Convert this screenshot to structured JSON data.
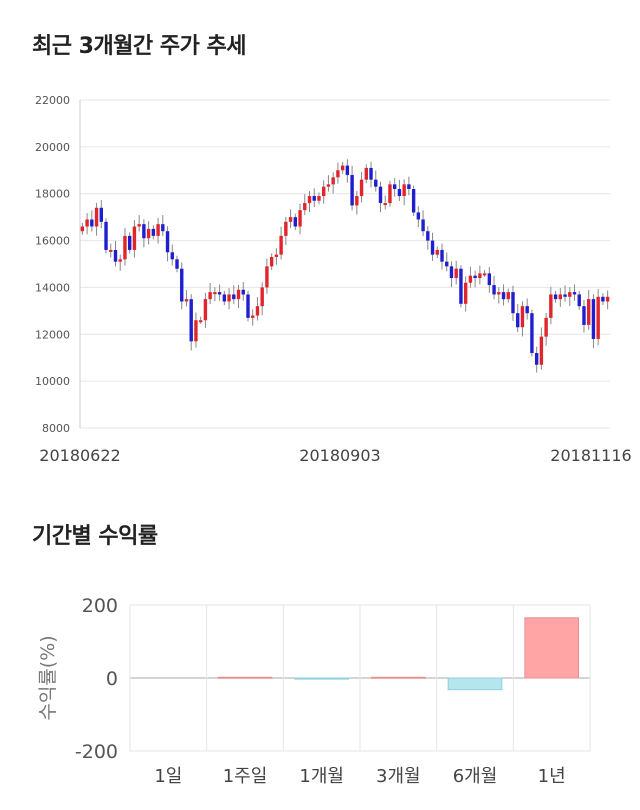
{
  "sections": {
    "price_title": "최근 3개월간 주가 추세",
    "returns_title": "기간별 수익률"
  },
  "colors": {
    "up": "#e0262c",
    "down": "#1f1fd0",
    "wick": "#888888",
    "grid": "#e6e6e6",
    "positive_bar": "#ffa5a6",
    "negative_bar": "#b4e6ee"
  },
  "chart_data": [
    {
      "type": "candlestick",
      "title": "최근 3개월간 주가 추세",
      "ylim": [
        8000,
        22000
      ],
      "yticks": [
        "22000",
        "20000",
        "18000",
        "16000",
        "14000",
        "12000",
        "10000",
        "8000"
      ],
      "xtick_labels": [
        "20180622",
        "20180903",
        "20181116"
      ],
      "grid": true,
      "closes": [
        16600,
        16900,
        16600,
        17400,
        16800,
        15600,
        15600,
        15100,
        15200,
        16200,
        15600,
        16600,
        16700,
        16100,
        16500,
        16200,
        16700,
        16400,
        15500,
        15200,
        14800,
        13400,
        13500,
        11700,
        12600,
        12600,
        13500,
        13800,
        13800,
        13700,
        13400,
        13700,
        13500,
        13900,
        13700,
        12700,
        12800,
        13200,
        14000,
        14900,
        15300,
        15400,
        16200,
        16800,
        17000,
        16600,
        17300,
        17600,
        17900,
        17700,
        17900,
        18300,
        18400,
        18700,
        19000,
        19200,
        18800,
        17500,
        17900,
        18600,
        19100,
        18600,
        18300,
        17600,
        17600,
        18400,
        18200,
        17900,
        18400,
        18200,
        17200,
        16900,
        16400,
        16000,
        15400,
        15600,
        15100,
        14900,
        14400,
        14800,
        13300,
        14200,
        14500,
        14400,
        14600,
        14600,
        14100,
        13700,
        13800,
        13500,
        13800,
        12900,
        12300,
        13200,
        12900,
        11200,
        10700,
        11900,
        12700,
        13700,
        13500,
        13700,
        13600,
        13800,
        13700,
        13200,
        12400,
        13500,
        11800,
        13600,
        13400,
        13600
      ]
    },
    {
      "type": "bar",
      "title": "기간별 수익률",
      "categories": [
        "1일",
        "1주일",
        "1개월",
        "3개월",
        "6개월",
        "1년"
      ],
      "values": [
        0,
        2,
        -3,
        2,
        -32,
        165
      ],
      "ylabel": "수익률(%)",
      "ylim": [
        -200,
        200
      ],
      "yticks": [
        "200",
        "0",
        "-200"
      ],
      "grid": true
    }
  ]
}
